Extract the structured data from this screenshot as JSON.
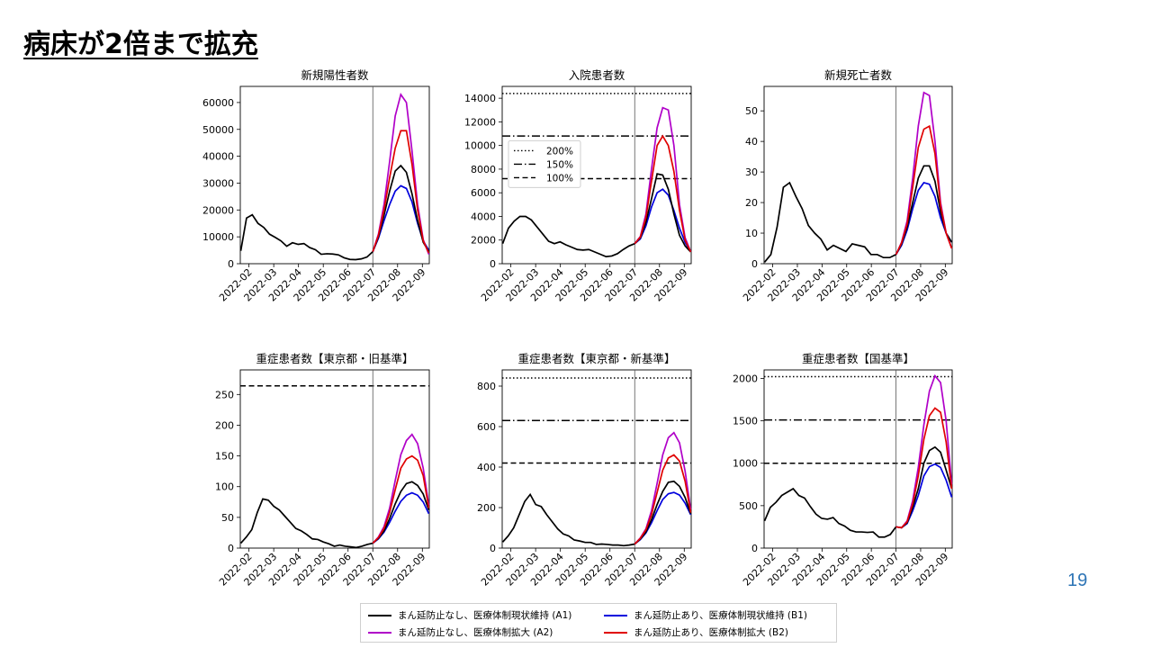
{
  "slide": {
    "title": "病床が2倍まで拡充",
    "page_number": "19"
  },
  "x_ticks": [
    "2022-02",
    "2022-03",
    "2022-04",
    "2022-05",
    "2022-06",
    "2022-07",
    "2022-08",
    "2022-09"
  ],
  "series_legend": [
    {
      "key": "A1",
      "name": "まん延防止なし、医療体制現状維持 (A1)",
      "color": "#000000"
    },
    {
      "key": "B1",
      "name": "まん延防止あり、医療体制現状維持 (B1)",
      "color": "#0000dd"
    },
    {
      "key": "A2",
      "name": "まん延防止なし、医療体制拡大 (A2)",
      "color": "#b000c8"
    },
    {
      "key": "B2",
      "name": "まん延防止あり、医療体制拡大 (B2)",
      "color": "#e00000"
    }
  ],
  "threshold_legend": [
    {
      "name": "200%",
      "style": "dotted"
    },
    {
      "name": "150%",
      "style": "dashdot"
    },
    {
      "name": "100%",
      "style": "dashed"
    }
  ],
  "chart_data": [
    {
      "type": "line",
      "title": "新規陽性者数",
      "ylim": [
        0,
        66000
      ],
      "yticks": [
        0,
        10000,
        20000,
        30000,
        40000,
        50000,
        60000
      ],
      "history": [
        4800,
        17000,
        18200,
        15000,
        13500,
        11000,
        9800,
        8500,
        6500,
        7800,
        7200,
        7500,
        6000,
        5200,
        3500,
        3700,
        3600,
        3300,
        2200,
        1600,
        1500,
        1800,
        2500,
        4500
      ],
      "forecast": {
        "A1": [
          4500,
          10000,
          18000,
          27000,
          34500,
          36500,
          34000,
          26000,
          16000,
          8000,
          4500
        ],
        "B1": [
          4500,
          9500,
          16000,
          22000,
          27000,
          29000,
          28000,
          23000,
          15000,
          8500,
          5000
        ],
        "A2": [
          4500,
          11000,
          22000,
          38000,
          55000,
          63000,
          60000,
          42000,
          22000,
          9000,
          3500
        ],
        "B2": [
          4500,
          10500,
          20000,
          32000,
          43000,
          49500,
          49500,
          37000,
          20000,
          8500,
          4000
        ]
      },
      "hlines": []
    },
    {
      "type": "line",
      "title": "入院患者数",
      "ylim": [
        0,
        15000
      ],
      "yticks": [
        0,
        2000,
        4000,
        6000,
        8000,
        10000,
        12000,
        14000
      ],
      "history": [
        1700,
        3000,
        3600,
        4000,
        4000,
        3700,
        3100,
        2500,
        1900,
        1700,
        1850,
        1600,
        1400,
        1200,
        1150,
        1200,
        1000,
        800,
        600,
        650,
        850,
        1200,
        1500,
        1700
      ],
      "forecast": {
        "A1": [
          1700,
          2200,
          3500,
          5500,
          7600,
          7500,
          6300,
          4200,
          2400,
          1500,
          1000
        ],
        "B1": [
          1700,
          2100,
          3200,
          4800,
          6000,
          6300,
          5800,
          4500,
          3000,
          1800,
          1000
        ],
        "A2": [
          1700,
          2300,
          4200,
          8000,
          11500,
          13200,
          13000,
          10000,
          5000,
          2200,
          1000
        ],
        "B2": [
          1700,
          2250,
          3900,
          7000,
          10000,
          10800,
          10000,
          7800,
          4500,
          2000,
          1000
        ]
      },
      "hlines": [
        {
          "name": "200%",
          "value": 14400,
          "style": "dotted"
        },
        {
          "name": "150%",
          "value": 10800,
          "style": "dashdot"
        },
        {
          "name": "100%",
          "value": 7200,
          "style": "dashed"
        }
      ]
    },
    {
      "type": "line",
      "title": "新規死亡者数",
      "ylim": [
        0,
        58
      ],
      "yticks": [
        0,
        10,
        20,
        30,
        40,
        50
      ],
      "history": [
        0.5,
        3,
        12,
        25,
        26.5,
        22,
        18,
        12.5,
        10,
        8,
        4.5,
        6,
        5,
        4,
        6.5,
        6,
        5.5,
        3,
        3,
        2,
        2,
        3
      ],
      "forecast": {
        "A1": [
          3,
          6.5,
          12,
          20,
          28,
          32,
          32,
          27,
          17,
          10,
          7
        ],
        "B1": [
          3,
          6,
          11,
          18,
          24,
          26.5,
          26,
          22,
          15,
          10,
          7
        ],
        "A2": [
          3,
          7,
          14,
          28,
          45,
          56,
          55,
          40,
          20,
          10,
          5
        ],
        "B2": [
          3,
          6.8,
          13,
          25,
          38,
          44,
          45,
          36,
          19,
          10,
          5
        ]
      },
      "hlines": []
    },
    {
      "type": "line",
      "title": "重症患者数【東京都・旧基準】",
      "ylim": [
        0,
        290
      ],
      "yticks": [
        0,
        50,
        100,
        150,
        200,
        250
      ],
      "history": [
        8,
        18,
        30,
        58,
        80,
        78,
        68,
        62,
        52,
        42,
        32,
        28,
        22,
        15,
        14,
        10,
        7,
        3,
        5,
        3,
        2,
        1,
        3,
        6,
        8
      ],
      "forecast": {
        "A1": [
          8,
          16,
          28,
          48,
          72,
          92,
          105,
          108,
          102,
          88,
          62
        ],
        "B1": [
          8,
          15,
          26,
          42,
          60,
          76,
          86,
          90,
          86,
          75,
          56
        ],
        "A2": [
          8,
          18,
          35,
          65,
          110,
          152,
          175,
          185,
          170,
          130,
          70
        ],
        "B2": [
          8,
          17,
          32,
          58,
          95,
          130,
          145,
          150,
          143,
          118,
          65
        ]
      },
      "hlines": [
        {
          "name": "100%",
          "value": 264,
          "style": "dashed"
        }
      ]
    },
    {
      "type": "line",
      "title": "重症患者数【東京都・新基準】",
      "ylim": [
        0,
        880
      ],
      "yticks": [
        0,
        200,
        400,
        600,
        800
      ],
      "history": [
        30,
        60,
        100,
        165,
        230,
        265,
        215,
        205,
        165,
        130,
        95,
        70,
        60,
        40,
        35,
        28,
        28,
        18,
        20,
        18,
        15,
        15,
        12,
        15,
        20
      ],
      "forecast": {
        "A1": [
          20,
          45,
          80,
          140,
          215,
          280,
          325,
          330,
          305,
          250,
          170
        ],
        "B1": [
          20,
          42,
          75,
          125,
          185,
          240,
          268,
          275,
          262,
          222,
          165
        ],
        "A2": [
          20,
          50,
          95,
          185,
          320,
          460,
          545,
          570,
          520,
          380,
          190
        ],
        "B2": [
          20,
          48,
          90,
          165,
          275,
          385,
          445,
          460,
          430,
          330,
          175
        ]
      },
      "hlines": [
        {
          "name": "200%",
          "value": 840,
          "style": "dotted"
        },
        {
          "name": "150%",
          "value": 630,
          "style": "dashdot"
        },
        {
          "name": "100%",
          "value": 420,
          "style": "dashed"
        }
      ]
    },
    {
      "type": "line",
      "title": "重症患者数【国基準】",
      "ylim": [
        0,
        2100
      ],
      "yticks": [
        0,
        500,
        1000,
        1500,
        2000
      ],
      "history": [
        320,
        480,
        540,
        620,
        660,
        700,
        620,
        590,
        490,
        400,
        350,
        340,
        360,
        290,
        260,
        210,
        190,
        190,
        185,
        190,
        130,
        130,
        160,
        250
      ],
      "forecast": {
        "A1": [
          250,
          240,
          300,
          480,
          700,
          1000,
          1150,
          1190,
          1130,
          920,
          700
        ],
        "B1": [
          250,
          240,
          290,
          440,
          620,
          850,
          960,
          990,
          950,
          800,
          600
        ],
        "A2": [
          250,
          240,
          320,
          560,
          950,
          1450,
          1850,
          2030,
          1950,
          1500,
          750
        ],
        "B2": [
          250,
          240,
          310,
          520,
          850,
          1280,
          1560,
          1650,
          1600,
          1250,
          700
        ]
      },
      "hlines": [
        {
          "name": "200%",
          "value": 2020,
          "style": "dotted"
        },
        {
          "name": "150%",
          "value": 1510,
          "style": "dashdot"
        },
        {
          "name": "100%",
          "value": 1000,
          "style": "dashed"
        }
      ]
    }
  ]
}
